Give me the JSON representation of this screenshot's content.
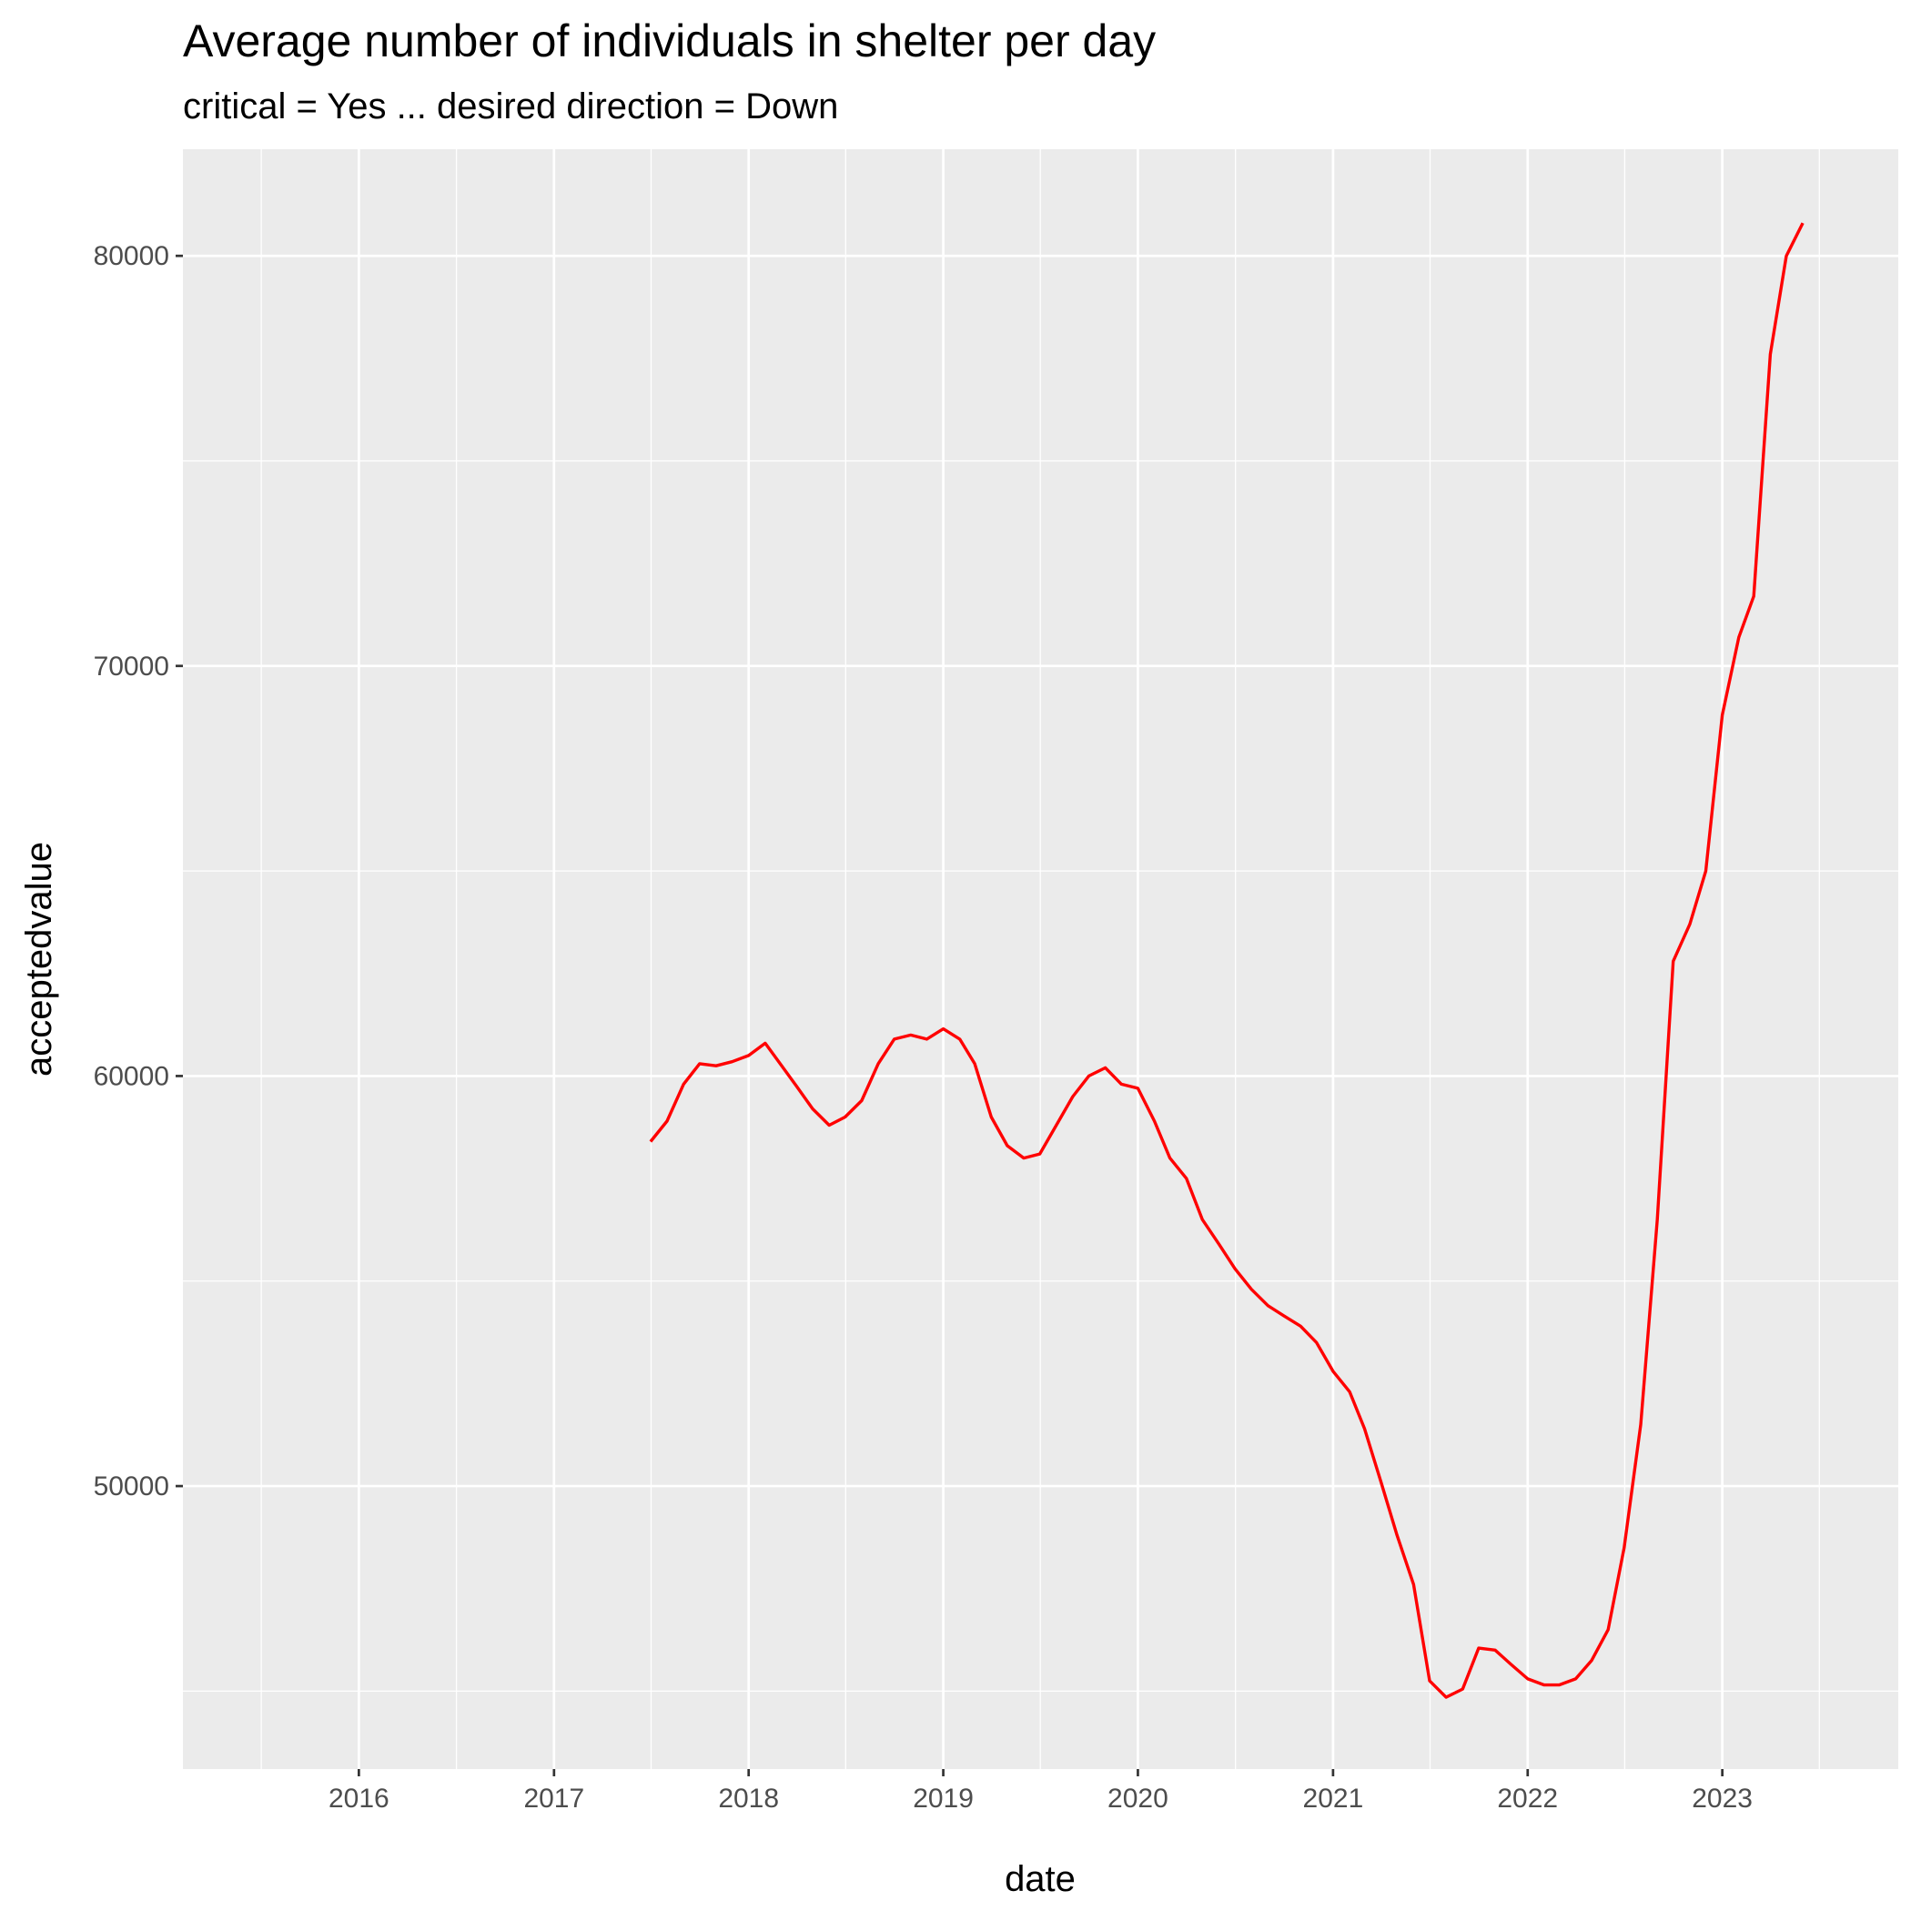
{
  "chart_data": {
    "type": "line",
    "title": "Average number of individuals in shelter per day",
    "subtitle": "critical = Yes ... desired direction = Down",
    "xlabel": "date",
    "ylabel": "acceptedvalue",
    "x_ticks": [
      "2016",
      "2017",
      "2018",
      "2019",
      "2020",
      "2021",
      "2022",
      "2023"
    ],
    "y_ticks": [
      50000,
      60000,
      70000,
      80000
    ],
    "x_range": [
      "2015-02-05",
      "2023-11-27"
    ],
    "y_range": [
      43100,
      82600
    ],
    "grid": true,
    "legend": "none",
    "series_color": "#ff0000",
    "series": [
      {
        "x": [
          "2017-07-01",
          "2017-08-01",
          "2017-09-01",
          "2017-10-01",
          "2017-11-01",
          "2017-12-01",
          "2018-01-01",
          "2018-02-01",
          "2018-03-01",
          "2018-04-01",
          "2018-05-01",
          "2018-06-01",
          "2018-07-01",
          "2018-08-01",
          "2018-09-01",
          "2018-10-01",
          "2018-11-01",
          "2018-12-01",
          "2019-01-01",
          "2019-02-01",
          "2019-03-01",
          "2019-04-01",
          "2019-05-01",
          "2019-06-01",
          "2019-07-01",
          "2019-08-01",
          "2019-09-01",
          "2019-10-01",
          "2019-11-01",
          "2019-12-01",
          "2020-01-01",
          "2020-02-01",
          "2020-03-01",
          "2020-04-01",
          "2020-05-01",
          "2020-06-01",
          "2020-07-01",
          "2020-08-01",
          "2020-09-01",
          "2020-10-01",
          "2020-11-01",
          "2020-12-01",
          "2021-01-01",
          "2021-02-01",
          "2021-03-01",
          "2021-04-01",
          "2021-05-01",
          "2021-06-01",
          "2021-07-01",
          "2021-08-01",
          "2021-09-01",
          "2021-10-01",
          "2021-11-01",
          "2021-12-01",
          "2022-01-01",
          "2022-02-01",
          "2022-03-01",
          "2022-04-01",
          "2022-05-01",
          "2022-06-01",
          "2022-07-01",
          "2022-08-01",
          "2022-09-01",
          "2022-10-01",
          "2022-11-01",
          "2022-12-01",
          "2023-01-01",
          "2023-02-01",
          "2023-03-01",
          "2023-04-01",
          "2023-05-01",
          "2023-06-01"
        ],
        "values": [
          58400,
          58900,
          59800,
          60300,
          60250,
          60350,
          60500,
          60800,
          60300,
          59750,
          59200,
          58800,
          59000,
          59400,
          60300,
          60900,
          61000,
          60900,
          61150,
          60900,
          60300,
          59000,
          58300,
          58000,
          58100,
          58800,
          59500,
          60000,
          60200,
          59800,
          59700,
          58900,
          58000,
          57500,
          56500,
          55900,
          55300,
          54800,
          54400,
          54150,
          53900,
          53500,
          52800,
          52300,
          51400,
          50100,
          48800,
          47600,
          45250,
          44850,
          45050,
          46050,
          46000,
          45650,
          45300,
          45150,
          45150,
          45300,
          45750,
          46500,
          48500,
          51500,
          56500,
          62800,
          63700,
          65000,
          68800,
          70700,
          71700,
          77600,
          80000,
          80800
        ]
      }
    ]
  }
}
